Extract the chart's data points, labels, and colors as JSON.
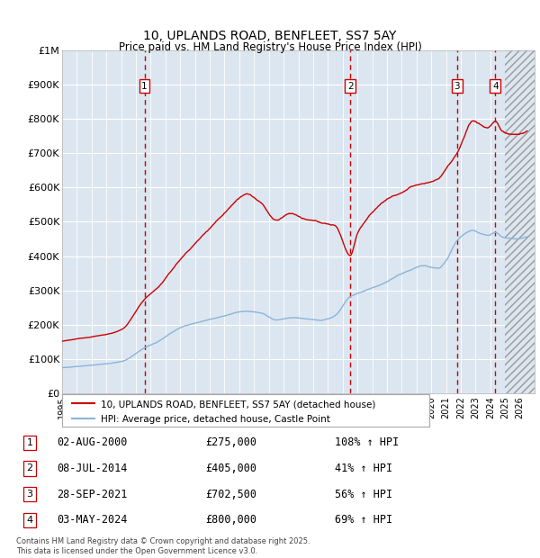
{
  "title": "10, UPLANDS ROAD, BENFLEET, SS7 5AY",
  "subtitle": "Price paid vs. HM Land Registry's House Price Index (HPI)",
  "yticks": [
    0,
    100000,
    200000,
    300000,
    400000,
    500000,
    600000,
    700000,
    800000,
    900000,
    1000000
  ],
  "ytick_labels": [
    "£0",
    "£100K",
    "£200K",
    "£300K",
    "£400K",
    "£500K",
    "£600K",
    "£700K",
    "£800K",
    "£900K",
    "£1M"
  ],
  "xmin": 1995.0,
  "xmax": 2027.0,
  "ymin": 0,
  "ymax": 1000000,
  "background_color": "#dce6f1",
  "hpi_line_color": "#8ab4d8",
  "price_line_color": "#cc0000",
  "grid_color": "#ffffff",
  "vline_color": "#cc0000",
  "transactions": [
    {
      "id": 1,
      "date_num": 2000.58,
      "price": 275000,
      "label": "1",
      "date_str": "02-AUG-2000",
      "pct": "108%",
      "dir": "↑"
    },
    {
      "id": 2,
      "date_num": 2014.52,
      "price": 405000,
      "label": "2",
      "date_str": "08-JUL-2014",
      "pct": "41%",
      "dir": "↑"
    },
    {
      "id": 3,
      "date_num": 2021.74,
      "price": 702500,
      "label": "3",
      "date_str": "28-SEP-2021",
      "pct": "56%",
      "dir": "↑"
    },
    {
      "id": 4,
      "date_num": 2024.34,
      "price": 800000,
      "label": "4",
      "date_str": "03-MAY-2024",
      "pct": "69%",
      "dir": "↑"
    }
  ],
  "legend_line1": "10, UPLANDS ROAD, BENFLEET, SS7 5AY (detached house)",
  "legend_line2": "HPI: Average price, detached house, Castle Point",
  "footer": "Contains HM Land Registry data © Crown copyright and database right 2025.\nThis data is licensed under the Open Government Licence v3.0.",
  "future_xmin": 2025.0,
  "xtick_years": [
    1995,
    1996,
    1997,
    1998,
    1999,
    2000,
    2001,
    2002,
    2003,
    2004,
    2005,
    2006,
    2007,
    2008,
    2009,
    2010,
    2011,
    2012,
    2013,
    2014,
    2015,
    2016,
    2017,
    2018,
    2019,
    2020,
    2021,
    2022,
    2023,
    2024,
    2025,
    2026
  ]
}
